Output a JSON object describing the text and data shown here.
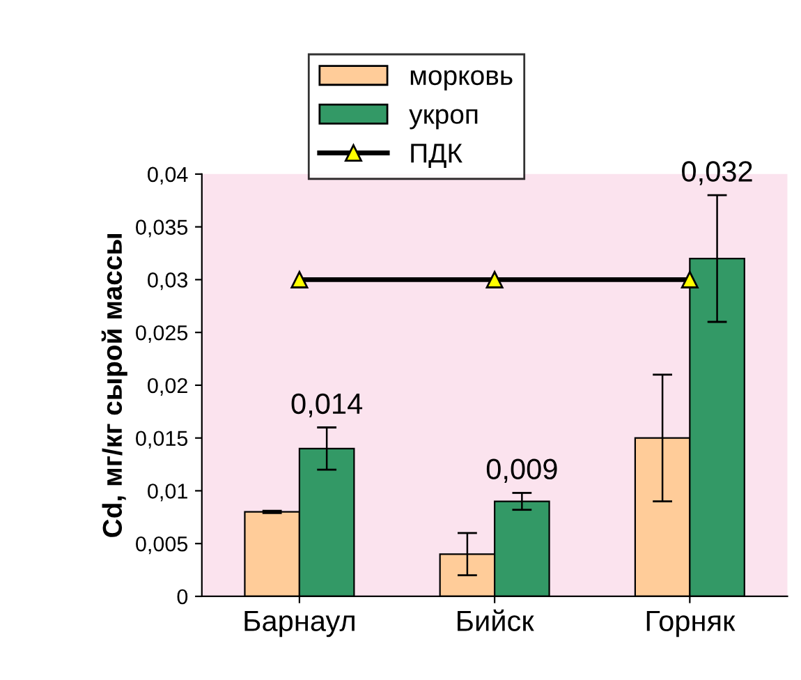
{
  "chart_data": {
    "type": "bar",
    "ylabel": "Cd, мг/кг сырой массы",
    "categories": [
      "Барнаул",
      "Бийск",
      "Горняк"
    ],
    "series": [
      {
        "name": "морковь",
        "color": "#ffcc99",
        "values": [
          0.008,
          0.004,
          0.015
        ],
        "errors": [
          0.0001,
          0.002,
          0.006
        ]
      },
      {
        "name": "укроп",
        "color": "#339966",
        "values": [
          0.014,
          0.009,
          0.032
        ],
        "errors": [
          0.002,
          0.0008,
          0.006
        ],
        "value_labels": [
          "0,014",
          "0,009",
          "0,032"
        ]
      },
      {
        "name": "ПДК",
        "type": "line",
        "color": "#000000",
        "marker": "triangle",
        "values": [
          0.03,
          0.03,
          0.03
        ]
      }
    ],
    "ylim": [
      0,
      0.04
    ],
    "yticks": [
      0,
      {
        "value": 0.005,
        "label": "0,005"
      },
      {
        "value": 0.01,
        "label": "0,01"
      },
      {
        "value": 0.015,
        "label": "0,015"
      },
      {
        "value": 0.02,
        "label": "0,02"
      },
      {
        "value": 0.025,
        "label": "0,025"
      },
      {
        "value": 0.03,
        "label": "0,03"
      },
      {
        "value": 0.035,
        "label": "0,035"
      },
      {
        "value": 0.04,
        "label": "0,04"
      }
    ],
    "grid": false,
    "legend": "top"
  }
}
